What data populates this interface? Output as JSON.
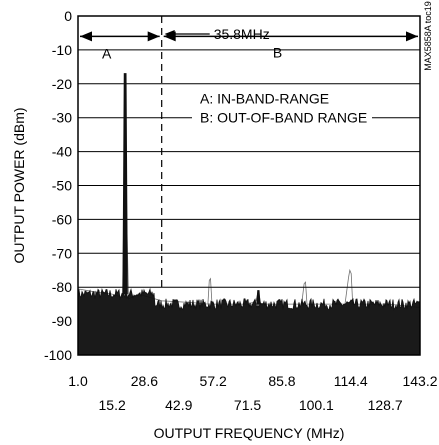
{
  "chart_data": {
    "type": "line",
    "title": "",
    "xlabel": "OUTPUT FREQUENCY (MHz)",
    "ylabel": "OUTPUT POWER (dBm)",
    "xlim": [
      1.0,
      143.2
    ],
    "ylim": [
      -100,
      0
    ],
    "grid": "horizontal",
    "x_ticks_upper": [
      "1.0",
      "28.6",
      "57.2",
      "85.8",
      "114.4",
      "143.2"
    ],
    "x_ticks_lower": [
      "15.2",
      "42.9",
      "71.5",
      "100.1",
      "128.7"
    ],
    "y_ticks": [
      "0",
      "-10",
      "-20",
      "-30",
      "-40",
      "-50",
      "-60",
      "-70",
      "-80",
      "-90",
      "-100"
    ],
    "series": [
      {
        "x": [
          1.0,
          9.0,
          15.0,
          19.5,
          20.0,
          20.6,
          21.3,
          22.0,
          26.0,
          35.8,
          48.0,
          55.0,
          55.6,
          56.1,
          56.7,
          62.0,
          72.0,
          75.0,
          76.0,
          77.0,
          84.0,
          94.0,
          95.0,
          95.6,
          96.2,
          105.0,
          112.0,
          113.5,
          114.0,
          114.6,
          115.2,
          130.0,
          143.2
        ],
        "y": [
          -80.5,
          -81.5,
          -82.0,
          -83.0,
          -60.0,
          -17.0,
          -60.0,
          -83.5,
          -82.0,
          -84.0,
          -84.5,
          -85.0,
          -78.0,
          -77.5,
          -85.0,
          -85.0,
          -85.0,
          -84.0,
          -81.0,
          -85.0,
          -85.0,
          -85.0,
          -79.0,
          -78.5,
          -85.0,
          -85.0,
          -85.0,
          -77.0,
          -75.0,
          -76.0,
          -85.0,
          -85.0,
          -86.0
        ]
      }
    ],
    "vlines": [
      {
        "x": 35.8,
        "label": "35.8MHz"
      }
    ],
    "ranges": [
      {
        "label": "A",
        "x_start": 1.0,
        "x_end": 35.8
      },
      {
        "label": "B",
        "x_start": 35.8,
        "x_end": 143.2
      }
    ],
    "legend_text": [
      "A: IN-BAND-RANGE",
      "B: OUT-OF-BAND RANGE"
    ],
    "side_code": "MAX5858A toc19"
  }
}
